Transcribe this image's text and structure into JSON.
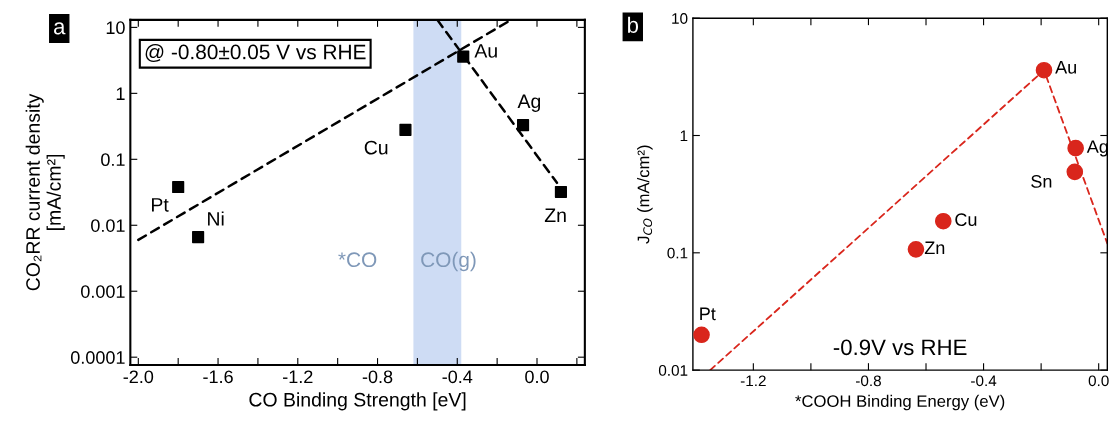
{
  "chart_data": [
    {
      "type": "scatter",
      "title": "a",
      "xlabel": "CO Binding Strength [eV]",
      "ylabel": "CO₂RR current density\n[mA/cm²]",
      "log": "y",
      "marker": "square",
      "grid": false,
      "xlim": [
        -2.04,
        0.24
      ],
      "ylim": [
        7.6e-05,
        13
      ],
      "xticks": [
        {
          "value": -2.0,
          "label": "-2.0"
        },
        {
          "value": -1.8,
          "label": null
        },
        {
          "value": -1.6,
          "label": "-1.6"
        },
        {
          "value": -1.4,
          "label": null
        },
        {
          "value": -1.2,
          "label": "-1.2"
        },
        {
          "value": -1.0,
          "label": null
        },
        {
          "value": -0.8,
          "label": "-0.8"
        },
        {
          "value": -0.6,
          "label": null
        },
        {
          "value": -0.4,
          "label": "-0.4"
        },
        {
          "value": -0.2,
          "label": null
        },
        {
          "value": 0.0,
          "label": "0.0"
        },
        {
          "value": 0.2,
          "label": null
        }
      ],
      "yticks": [
        0.0001,
        0.001,
        0.01,
        0.1,
        1,
        10
      ],
      "series": [
        {
          "color": "#000000",
          "x": [
            -1.8,
            -1.7,
            -0.66,
            -0.37,
            -0.07,
            0.12
          ],
          "values": [
            0.038,
            0.0066,
            0.28,
            3.6,
            0.33,
            0.032
          ]
        },
        {
          "type": "line",
          "line_style": "dashed",
          "marker": "none",
          "color": "#000000",
          "x": [
            -2.0,
            -0.13
          ],
          "values": [
            0.006,
            13
          ]
        },
        {
          "type": "line",
          "line_style": "dashed",
          "marker": "none",
          "color": "#000000",
          "x": [
            -0.5,
            0.1
          ],
          "values": [
            13,
            0.044
          ]
        }
      ],
      "bands": [
        {
          "axis": "x",
          "from": -0.62,
          "to": -0.38,
          "color": "#aec4ec"
        }
      ],
      "annotations": [
        "@ -0.80±0.05 V vs RHE",
        {
          "text": "Pt",
          "x": -1.8,
          "y": 0.038
        },
        {
          "text": "Ni",
          "x": -1.7,
          "y": 0.0066
        },
        {
          "text": "Cu",
          "x": -0.66,
          "y": 0.28
        },
        {
          "text": "Au",
          "x": -0.37,
          "y": 3.6
        },
        {
          "text": "Ag",
          "x": -0.07,
          "y": 0.33
        },
        {
          "text": "Zn",
          "x": 0.12,
          "y": 0.032
        },
        "*CO",
        "CO(g)"
      ]
    },
    {
      "type": "scatter",
      "title": "b",
      "xlabel": "*COOH Binding Energy (eV)",
      "ylabel": "J$_{CO}$ (mA/cm²)",
      "log": "y",
      "marker": "circle",
      "grid": false,
      "xlim": [
        -1.41,
        0.03
      ],
      "ylim": [
        0.01,
        10
      ],
      "xticks": [
        {
          "value": -1.2,
          "label": "-1.2"
        },
        {
          "value": -1.0,
          "label": null
        },
        {
          "value": -0.8,
          "label": "-0.8"
        },
        {
          "value": -0.6,
          "label": null
        },
        {
          "value": -0.4,
          "label": "-0.4"
        },
        {
          "value": -0.2,
          "label": null
        },
        {
          "value": 0.0,
          "label": "0.0"
        }
      ],
      "yticks": [
        0.01,
        0.1,
        1,
        10
      ],
      "series": [
        {
          "color": "#d9261c",
          "x": [
            -1.38,
            -0.19,
            -0.08,
            -0.083,
            -0.54,
            -0.635
          ],
          "values": [
            0.02,
            3.6,
            0.78,
            0.49,
            0.186,
            0.107
          ]
        },
        {
          "type": "line",
          "line_style": "dashed",
          "marker": "none",
          "color": "#d9261c",
          "x": [
            -1.35,
            -0.19,
            0.03
          ],
          "values": [
            0.01,
            3.6,
            0.12
          ]
        }
      ],
      "annotations": [
        "-0.9V vs RHE",
        {
          "text": "Pt",
          "x": -1.38,
          "y": 0.02
        },
        {
          "text": "Au",
          "x": -0.19,
          "y": 3.6
        },
        {
          "text": "Ag",
          "x": -0.08,
          "y": 0.78
        },
        {
          "text": "Sn",
          "x": -0.083,
          "y": 0.49
        },
        {
          "text": "Cu",
          "x": -0.54,
          "y": 0.186
        },
        {
          "text": "Zn",
          "x": -0.635,
          "y": 0.107
        }
      ]
    }
  ]
}
